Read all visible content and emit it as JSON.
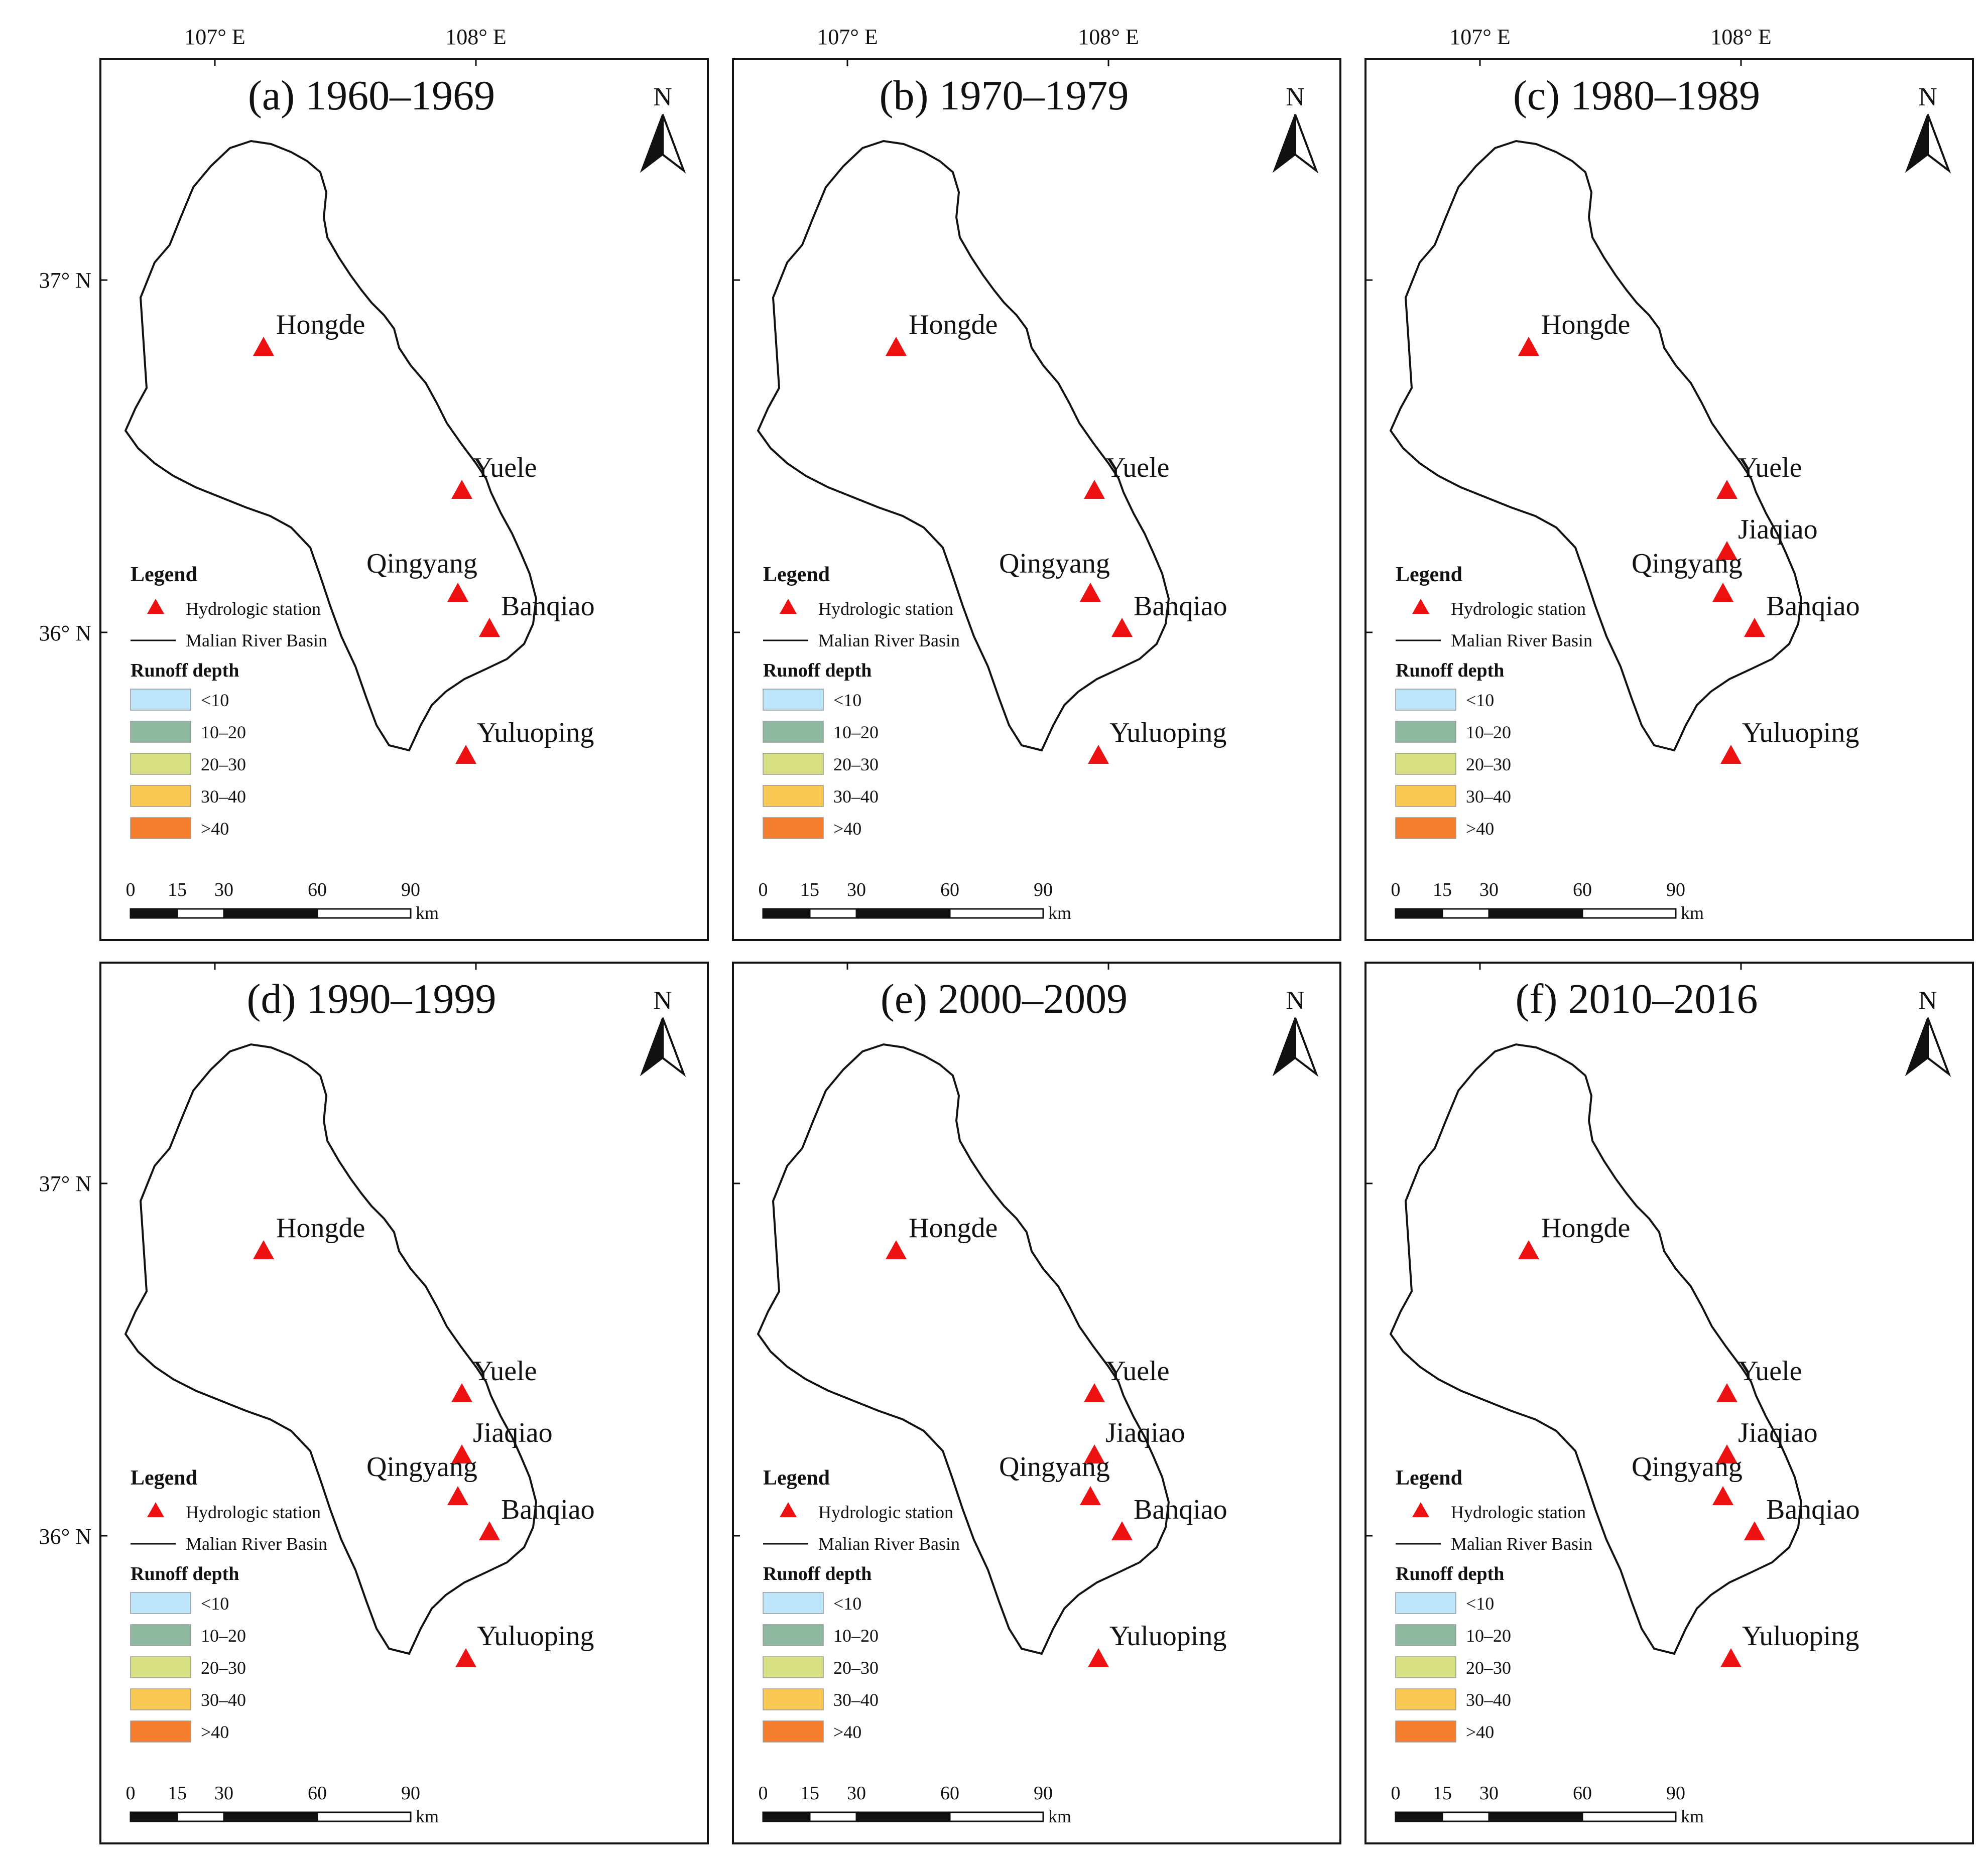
{
  "axis_labels": {
    "lon_left": "107° E",
    "lon_right": "108° E",
    "lat_top": "37° N",
    "lat_bottom": "36° N"
  },
  "legend": {
    "title": "Legend",
    "station_label": "Hydrologic station",
    "basin_label": "Malian River Basin",
    "runoff_title": "Runoff depth",
    "classes": [
      {
        "label": "<10",
        "color": "#bee6fa"
      },
      {
        "label": "10–20",
        "color": "#8fb8a1"
      },
      {
        "label": "20–30",
        "color": "#d6e083"
      },
      {
        "label": "30–40",
        "color": "#f9c852"
      },
      {
        "label": ">40",
        "color": "#f57f2e"
      }
    ]
  },
  "north_label": "N",
  "scale_bar": {
    "ticks": [
      "0",
      "15",
      "30",
      "60",
      "90"
    ],
    "unit": "km"
  },
  "stations": [
    "Hongde",
    "Yuele",
    "Jiaqiao",
    "Qingyang",
    "Banqiao",
    "Yuluoping"
  ],
  "panels": [
    {
      "title": "(a) 1960–1969",
      "show_jiaqiao": false,
      "classes": {
        "hongde": 1,
        "west": 2,
        "upper": 3,
        "east": 3,
        "banqiao": 2,
        "south": 3
      }
    },
    {
      "title": "(b) 1970–1979",
      "show_jiaqiao": false,
      "classes": {
        "hongde": 1,
        "west": 2,
        "upper": 3,
        "east": 3,
        "banqiao": 1,
        "south": 3
      }
    },
    {
      "title": "(c) 1980–1989",
      "show_jiaqiao": true,
      "classes": {
        "hongde": 1,
        "west": 2,
        "upper": 2,
        "east": 2,
        "banqiao": 1,
        "south": 3
      }
    },
    {
      "title": "(d) 1990–1999",
      "show_jiaqiao": true,
      "classes": {
        "hongde": 1,
        "west": 2,
        "upper": 2,
        "east": 3,
        "banqiao": 1,
        "south": 2
      }
    },
    {
      "title": "(e) 2000–2009",
      "show_jiaqiao": true,
      "classes": {
        "hongde": 1,
        "west": 1,
        "upper": 2,
        "east": 2,
        "banqiao": 1,
        "south": 2
      }
    },
    {
      "title": "(f) 2010–2016",
      "show_jiaqiao": true,
      "classes": {
        "hongde": 0,
        "west": 1,
        "upper": 2,
        "east": 2,
        "banqiao": 1,
        "south": 2
      }
    }
  ]
}
